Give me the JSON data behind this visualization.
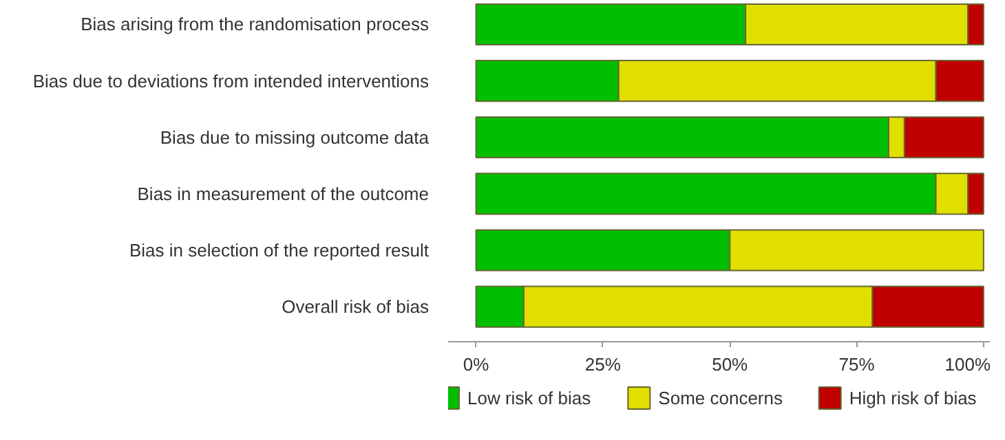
{
  "chart_data": {
    "type": "bar",
    "orientation": "horizontal",
    "stacked": true,
    "legend": "bottom",
    "grid": false,
    "categories": [
      "Bias arising from the randomisation process",
      "Bias due to deviations from intended interventions",
      "Bias due to missing outcome data",
      "Bias in measurement of the outcome",
      "Bias in selection of the reported result",
      "Overall risk of bias"
    ],
    "series": [
      {
        "name": "Low risk of bias",
        "color": "#00bf00",
        "values": [
          53.1,
          28.1,
          81.3,
          90.6,
          50,
          9.4
        ]
      },
      {
        "name": "Some concerns",
        "color": "#e1df00",
        "values": [
          43.8,
          62.5,
          3.1,
          6.3,
          50,
          68.7
        ]
      },
      {
        "name": "High risk of bias",
        "color": "#c00000",
        "values": [
          3.1,
          9.4,
          15.6,
          3.1,
          0,
          21.9
        ]
      }
    ],
    "xlim": [
      -5.5,
      103
    ],
    "xticks": [
      {
        "value": 0,
        "label": "0%"
      },
      {
        "value": 25,
        "label": "25%"
      },
      {
        "value": 50,
        "label": "50%"
      },
      {
        "value": 75,
        "label": "75%"
      },
      {
        "value": 100,
        "label": "100%"
      }
    ]
  }
}
